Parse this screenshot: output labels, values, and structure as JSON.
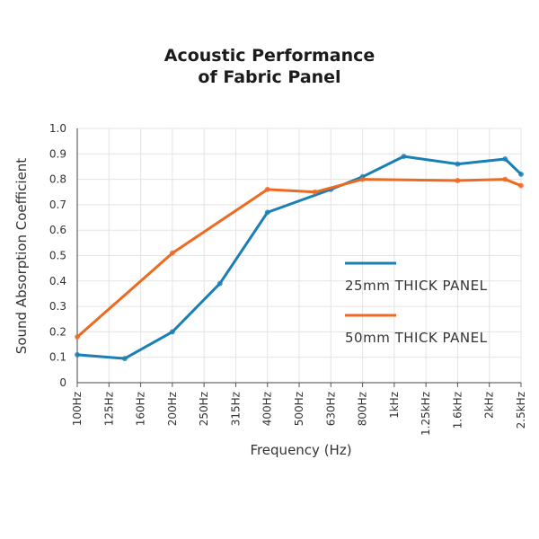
{
  "chart_data": {
    "type": "line",
    "title_line1": "Acoustic Performance",
    "title_line2": "of Fabric Panel",
    "xlabel": "Frequency (Hz)",
    "ylabel": "Sound Absorption Coefficient",
    "categories": [
      "100Hz",
      "125Hz",
      "160Hz",
      "200Hz",
      "250Hz",
      "315Hz",
      "400Hz",
      "500Hz",
      "630Hz",
      "800Hz",
      "1kHz",
      "1.25kHz",
      "1.6kHz",
      "2kHz",
      "2.5kHz"
    ],
    "y_ticks": [
      "0",
      "0.1",
      "0.2",
      "0.3",
      "0.4",
      "0.5",
      "0.6",
      "0.7",
      "0.8",
      "0.9",
      "1.0"
    ],
    "ylim": [
      0,
      1.0
    ],
    "grid": true,
    "legend_position": "right-middle",
    "series": [
      {
        "name": "25mm THICK PANEL",
        "color": "#1a7fb5",
        "points": [
          {
            "x": 0,
            "y": 0.11
          },
          {
            "x": 1.5,
            "y": 0.095
          },
          {
            "x": 3,
            "y": 0.2
          },
          {
            "x": 4.5,
            "y": 0.39
          },
          {
            "x": 6,
            "y": 0.67
          },
          {
            "x": 8,
            "y": 0.76
          },
          {
            "x": 9,
            "y": 0.81
          },
          {
            "x": 10.3,
            "y": 0.89
          },
          {
            "x": 12,
            "y": 0.86
          },
          {
            "x": 13.5,
            "y": 0.88
          },
          {
            "x": 14,
            "y": 0.82
          }
        ]
      },
      {
        "name": "50mm THICK PANEL",
        "color": "#ed6a22",
        "points": [
          {
            "x": 0,
            "y": 0.18
          },
          {
            "x": 3,
            "y": 0.51
          },
          {
            "x": 6,
            "y": 0.76
          },
          {
            "x": 7.5,
            "y": 0.75
          },
          {
            "x": 9,
            "y": 0.8
          },
          {
            "x": 12,
            "y": 0.795
          },
          {
            "x": 13.5,
            "y": 0.8
          },
          {
            "x": 14,
            "y": 0.775
          }
        ]
      }
    ]
  }
}
